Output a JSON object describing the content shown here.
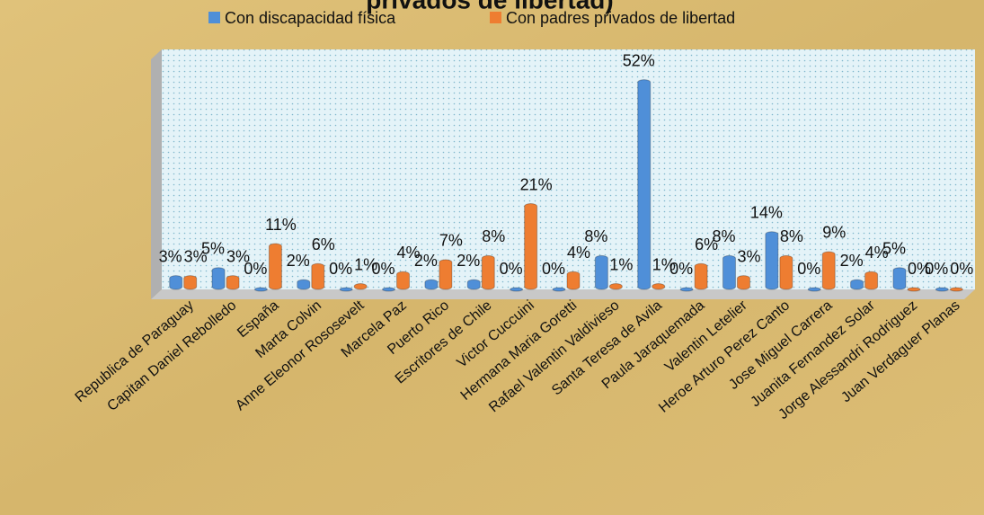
{
  "chart_data": {
    "type": "bar",
    "title": "privados de libertad)",
    "categories": [
      "Republica de Paraguay",
      "Capitan Daniel Rebolledo",
      "España",
      "Marta Colvin",
      "Anne Eleonor Rososevelt",
      "Marcela Paz",
      "Puerto Rico",
      "Escritores de Chile",
      "Victor Cuccuini",
      "Hermana Maria Goretti",
      "Rafael Valentin Valdivieso",
      "Santa Teresa de Avila",
      "Paula Jaraquemada",
      "Valentin Letelier",
      "Heroe Arturo Perez Canto",
      "Jose Miguel Carrera",
      "Juanita Fernandez Solar",
      "Jorge Alessandri Rodriguez",
      "Juan Verdaguer Planas"
    ],
    "series": [
      {
        "name": "Con discapacidad física",
        "color": "#4f8fd8",
        "values": [
          3,
          5,
          0,
          2,
          0,
          0,
          2,
          2,
          0,
          0,
          8,
          52,
          0,
          8,
          14,
          0,
          2,
          5,
          0
        ],
        "value_labels": [
          "3%",
          "5%",
          "0%",
          "2%",
          "0%",
          "0%",
          "2%",
          "2%",
          "0%",
          "0%",
          "8%",
          "52%",
          "0%",
          "8%",
          "14%",
          "0%",
          "2%",
          "5%",
          "0%"
        ]
      },
      {
        "name": "Con padres privados de libertad",
        "color": "#ee7d31",
        "values": [
          3,
          3,
          11,
          6,
          1,
          4,
          7,
          8,
          21,
          4,
          1,
          1,
          6,
          3,
          8,
          9,
          4,
          0,
          0
        ],
        "value_labels": [
          "3%",
          "3%",
          "11%",
          "6%",
          "1%",
          "4%",
          "7%",
          "8%",
          "21%",
          "4%",
          "1%",
          "1%",
          "6%",
          "3%",
          "8%",
          "9%",
          "4%",
          "0%",
          "0%"
        ]
      }
    ],
    "ylim": [
      0,
      60
    ]
  }
}
